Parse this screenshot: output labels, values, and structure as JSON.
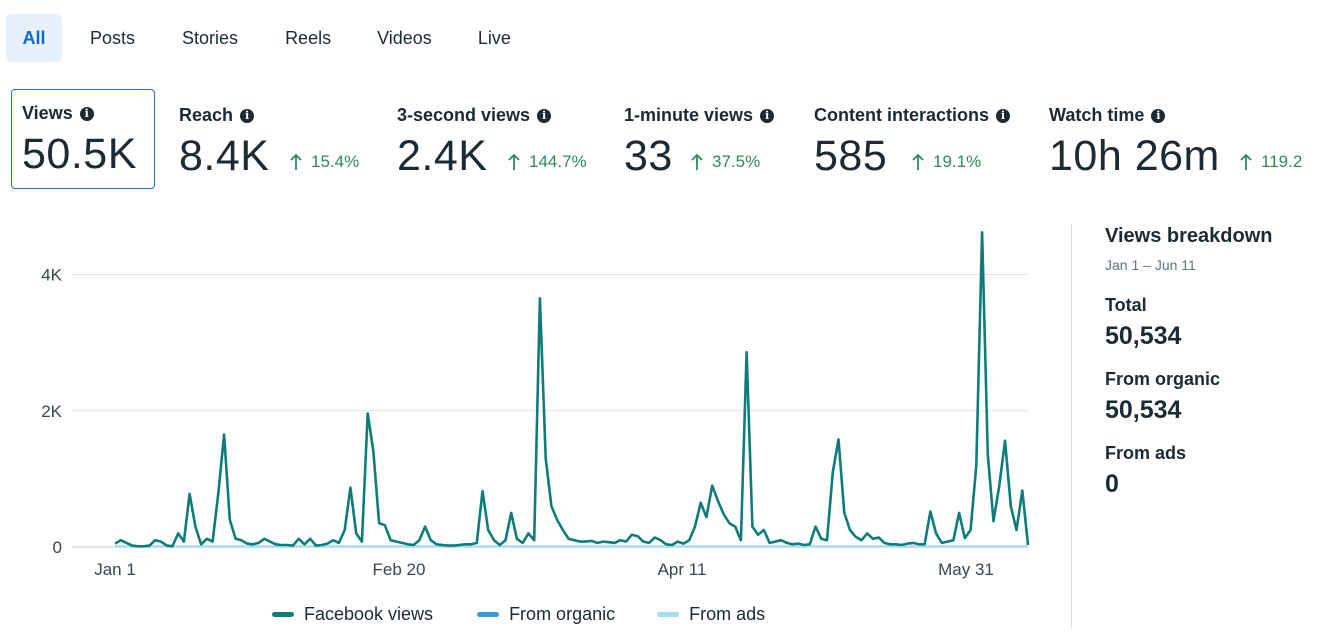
{
  "tabs": [
    {
      "label": "All",
      "active": true
    },
    {
      "label": "Posts",
      "active": false
    },
    {
      "label": "Stories",
      "active": false
    },
    {
      "label": "Reels",
      "active": false
    },
    {
      "label": "Videos",
      "active": false
    },
    {
      "label": "Live",
      "active": false
    }
  ],
  "metrics": [
    {
      "label": "Views",
      "value": "50.5K",
      "change": "",
      "selected": true
    },
    {
      "label": "Reach",
      "value": "8.4K",
      "change": "15.4%",
      "selected": false
    },
    {
      "label": "3-second views",
      "value": "2.4K",
      "change": "144.7%",
      "selected": false
    },
    {
      "label": "1-minute views",
      "value": "33",
      "change": "37.5%",
      "selected": false
    },
    {
      "label": "Content interactions",
      "value": "585",
      "change": "19.1%",
      "selected": false
    },
    {
      "label": "Watch time",
      "value": "10h 26m",
      "change": "119.2",
      "selected": false
    }
  ],
  "colors": {
    "accent": "#0a6cd0",
    "tab_active_bg": "#e7f1fb",
    "positive": "#2f8a5a",
    "series_facebook_views": "#0f7c7c",
    "series_from_organic": "#3a9ad9",
    "series_from_ads": "#a6dcf5"
  },
  "chart_data": {
    "type": "line",
    "x_tick_labels": [
      "Jan 1",
      "Feb 20",
      "Apr 11",
      "May 31"
    ],
    "x_start": "Jan 1",
    "x_end": "Jun 11",
    "y_tick_labels": [
      "0",
      "2K",
      "4K"
    ],
    "ylim": [
      0,
      4800
    ],
    "grid": true,
    "legend_position": "bottom",
    "series": [
      {
        "name": "Facebook views",
        "values": [
          50,
          100,
          60,
          20,
          10,
          10,
          20,
          100,
          80,
          20,
          10,
          200,
          80,
          780,
          300,
          40,
          120,
          80,
          800,
          1650,
          400,
          120,
          100,
          50,
          40,
          60,
          120,
          80,
          40,
          30,
          30,
          20,
          120,
          40,
          120,
          20,
          30,
          50,
          100,
          60,
          250,
          870,
          200,
          80,
          1960,
          1400,
          350,
          320,
          100,
          80,
          60,
          40,
          30,
          100,
          300,
          100,
          40,
          30,
          20,
          20,
          30,
          40,
          40,
          60,
          820,
          250,
          100,
          30,
          100,
          500,
          120,
          60,
          200,
          100,
          3650,
          1300,
          600,
          400,
          250,
          120,
          100,
          80,
          80,
          90,
          60,
          80,
          70,
          60,
          100,
          80,
          180,
          160,
          80,
          60,
          140,
          100,
          40,
          30,
          80,
          50,
          100,
          300,
          650,
          440,
          900,
          680,
          480,
          350,
          300,
          100,
          2860,
          300,
          180,
          250,
          60,
          80,
          100,
          60,
          40,
          50,
          30,
          40,
          300,
          120,
          100,
          1100,
          1580,
          500,
          250,
          150,
          100,
          200,
          120,
          140,
          60,
          40,
          40,
          30,
          50,
          60,
          40,
          40,
          520,
          200,
          60,
          80,
          100,
          500,
          130,
          250,
          1200,
          4620,
          1350,
          380,
          900,
          1560,
          600,
          250,
          830,
          30
        ]
      },
      {
        "name": "From organic",
        "values": []
      },
      {
        "name": "From ads",
        "values": [
          0
        ]
      }
    ]
  },
  "legend": [
    "Facebook views",
    "From organic",
    "From ads"
  ],
  "breakdown": {
    "title": "Views breakdown",
    "date_range": "Jan 1 – Jun 11",
    "total_label": "Total",
    "total_value": "50,534",
    "organic_label": "From organic",
    "organic_value": "50,534",
    "ads_label": "From ads",
    "ads_value": "0"
  }
}
